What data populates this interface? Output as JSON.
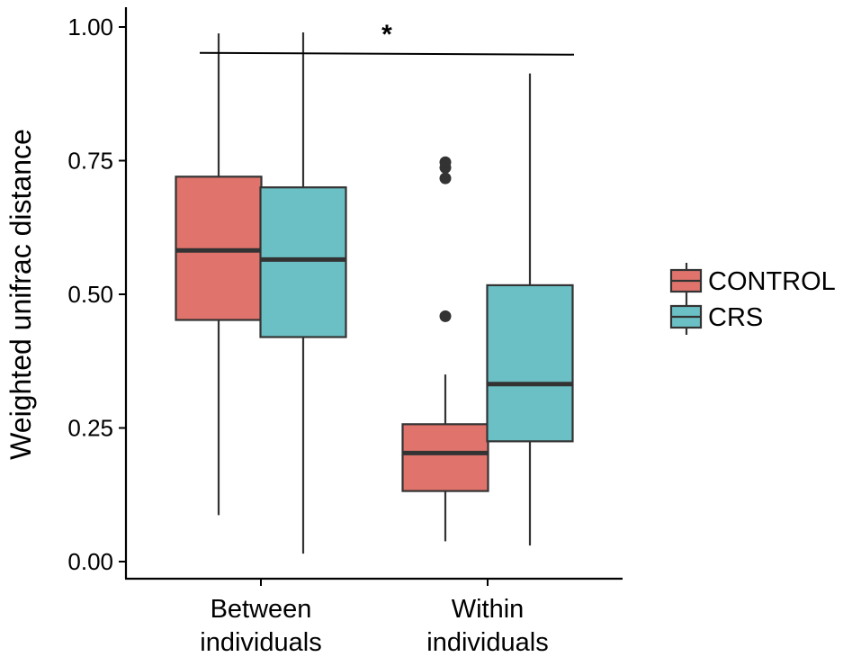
{
  "chart_data": {
    "type": "box",
    "title": "",
    "xlabel": "",
    "ylabel": "Weighted unifrac distance",
    "ylim": [
      0,
      1
    ],
    "yticks": [
      "0.00",
      "0.25",
      "0.50",
      "0.75",
      "1.00"
    ],
    "ytick_values": [
      0,
      0.25,
      0.5,
      0.75,
      1.0
    ],
    "grid": false,
    "legend_position": "right",
    "categories": [
      {
        "lines": [
          "Between",
          "individuals"
        ]
      },
      {
        "lines": [
          "Within",
          "individuals"
        ]
      }
    ],
    "series": [
      {
        "name": "CONTROL",
        "color": "#E0746C",
        "boxes": [
          {
            "whisker_low": 0.087,
            "q1": 0.452,
            "median": 0.582,
            "q3": 0.72,
            "whisker_high": 0.988,
            "outliers": []
          },
          {
            "whisker_low": 0.038,
            "q1": 0.132,
            "median": 0.203,
            "q3": 0.257,
            "whisker_high": 0.35,
            "outliers": [
              0.459,
              0.717,
              0.737,
              0.747
            ]
          }
        ]
      },
      {
        "name": "CRS",
        "color": "#6BC0C5",
        "boxes": [
          {
            "whisker_low": 0.015,
            "q1": 0.42,
            "median": 0.565,
            "q3": 0.7,
            "whisker_high": 0.99,
            "outliers": []
          },
          {
            "whisker_low": 0.03,
            "q1": 0.225,
            "median": 0.332,
            "q3": 0.517,
            "whisker_high": 0.913,
            "outliers": []
          }
        ]
      }
    ],
    "significance": {
      "label": "*",
      "y": 0.95
    }
  }
}
